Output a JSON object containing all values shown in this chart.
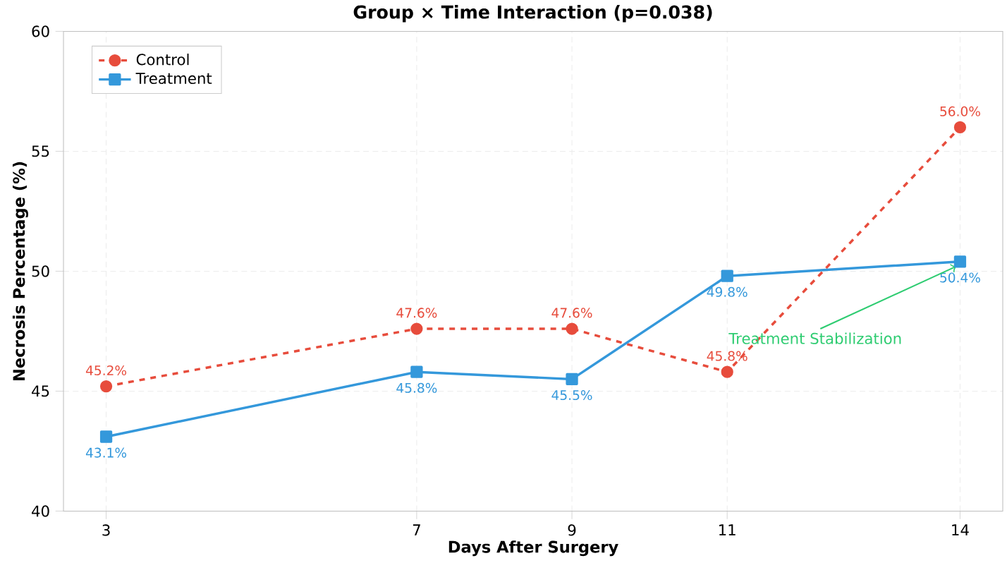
{
  "chart_data": {
    "type": "line",
    "title": "Group × Time Interaction (p=0.038)",
    "xlabel": "Days After Surgery",
    "ylabel": "Necrosis Percentage (%)",
    "x": [
      3,
      7,
      9,
      11,
      14
    ],
    "series": [
      {
        "name": "Control",
        "color": "#e74c3c",
        "values": [
          45.2,
          47.6,
          47.6,
          45.8,
          56.0
        ],
        "marker": "circle",
        "line_style": "dashed",
        "value_labels": [
          "45.2%",
          "47.6%",
          "47.6%",
          "45.8%",
          "56.0%"
        ]
      },
      {
        "name": "Treatment",
        "color": "#3498db",
        "values": [
          43.1,
          45.8,
          45.5,
          49.8,
          50.4
        ],
        "marker": "square",
        "line_style": "solid",
        "value_labels": [
          "43.1%",
          "45.8%",
          "45.5%",
          "49.8%",
          "50.4%"
        ]
      }
    ],
    "xlim": [
      2.45,
      14.55
    ],
    "ylim": [
      40,
      60
    ],
    "xticks": [
      3,
      7,
      9,
      11,
      14
    ],
    "yticks": [
      40,
      45,
      50,
      55,
      60
    ],
    "grid": true,
    "legend": "top left",
    "annotations": [
      {
        "text": "Treatment Stabilization",
        "x": 14,
        "y": 50.4
      }
    ]
  }
}
